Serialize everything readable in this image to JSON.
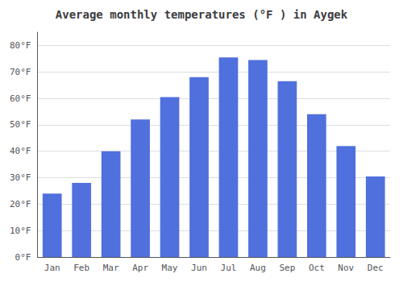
{
  "chart_data": {
    "type": "bar",
    "title": "Average monthly temperatures (°F ) in Aygek",
    "categories": [
      "Jan",
      "Feb",
      "Mar",
      "Apr",
      "May",
      "Jun",
      "Jul",
      "Aug",
      "Sep",
      "Oct",
      "Nov",
      "Dec"
    ],
    "values": [
      24,
      28,
      40,
      52,
      60.5,
      68,
      75.5,
      74.5,
      66.5,
      54,
      42,
      30.5
    ],
    "ylim": [
      0,
      85
    ],
    "yticks": [
      {
        "value": 0,
        "label": "0°F"
      },
      {
        "value": 10,
        "label": "10°F"
      },
      {
        "value": 20,
        "label": "20°F"
      },
      {
        "value": 30,
        "label": "30°F"
      },
      {
        "value": 40,
        "label": "40°F"
      },
      {
        "value": 50,
        "label": "50°F"
      },
      {
        "value": 60,
        "label": "60°F"
      },
      {
        "value": 70,
        "label": "70°F"
      },
      {
        "value": 80,
        "label": "80°F"
      }
    ],
    "grid": true
  }
}
